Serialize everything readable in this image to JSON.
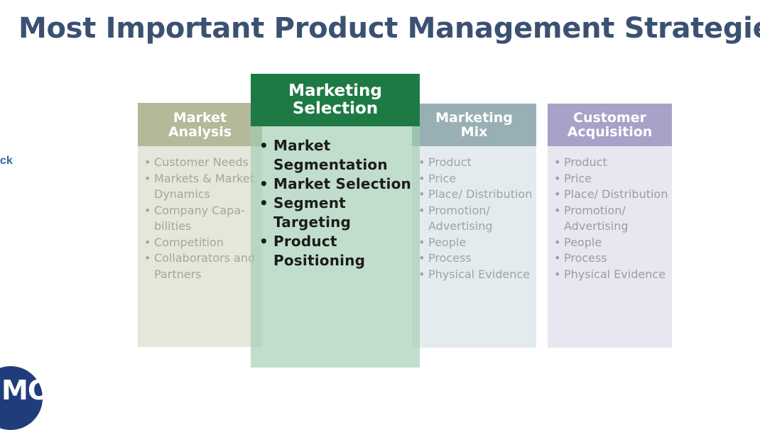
{
  "title": "Most Important Product Management Strategies",
  "side_link": "ck",
  "logo_text": "MOC",
  "columns": [
    {
      "heading_line1": "Market",
      "heading_line2": "Analysis",
      "items": [
        "Customer Needs",
        "Markets & Market Dynamics",
        "Company Capa-bilities",
        "Competition",
        "Collaborators and Partners"
      ]
    },
    {
      "heading_line1": "Marketing",
      "heading_line2": "Selection",
      "items": [
        "Market Segmentation",
        "Market Selection",
        "Segment Targeting",
        "Product Positioning"
      ]
    },
    {
      "heading_line1": "Marketing",
      "heading_line2": "Mix",
      "items": [
        "Product",
        "Price",
        "Place/ Distribution",
        "Promotion/ Advertising",
        "People",
        "Process",
        "Physical Evidence"
      ]
    },
    {
      "heading_line1": "Customer",
      "heading_line2": "Acquisition",
      "items": [
        "Product",
        "Price",
        "Place/ Distribution",
        "Promotion/ Advertising",
        "People",
        "Process",
        "Physical Evidence"
      ]
    }
  ],
  "colors": {
    "title": "#3b5172",
    "market_analysis_header": "#b4b999",
    "marketing_selection_header": "#1e7a45",
    "marketing_mix_header": "#98afb5",
    "customer_acquisition_header": "#a8a1c8"
  }
}
